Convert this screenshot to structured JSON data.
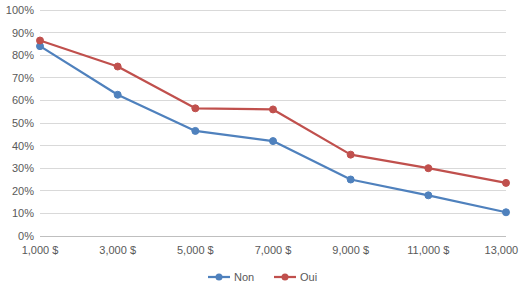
{
  "chart_data": {
    "type": "line",
    "categories": [
      "1,000 $",
      "3,000 $",
      "5,000 $",
      "7,000 $",
      "9,000 $",
      "11,000 $",
      "13,000 $"
    ],
    "series": [
      {
        "name": "Non",
        "color": "#4f81bd",
        "values": [
          84,
          62.5,
          46.5,
          42,
          25,
          18,
          10.5
        ]
      },
      {
        "name": "Oui",
        "color": "#c0504d",
        "values": [
          86.5,
          75,
          56.5,
          56,
          36,
          30,
          23.5
        ]
      }
    ],
    "ylim": [
      0,
      100
    ],
    "yticks": [
      {
        "value": 0,
        "label": "0%"
      },
      {
        "value": 10,
        "label": "10%"
      },
      {
        "value": 20,
        "label": "20%"
      },
      {
        "value": 30,
        "label": "30%"
      },
      {
        "value": 40,
        "label": "40%"
      },
      {
        "value": 50,
        "label": "50%"
      },
      {
        "value": 60,
        "label": "60%"
      },
      {
        "value": 70,
        "label": "70%"
      },
      {
        "value": 80,
        "label": "80%"
      },
      {
        "value": 90,
        "label": "90%"
      },
      {
        "value": 100,
        "label": "100%"
      }
    ],
    "grid": true,
    "marker": "circle",
    "line_style": "solid",
    "legend": "bottom"
  }
}
